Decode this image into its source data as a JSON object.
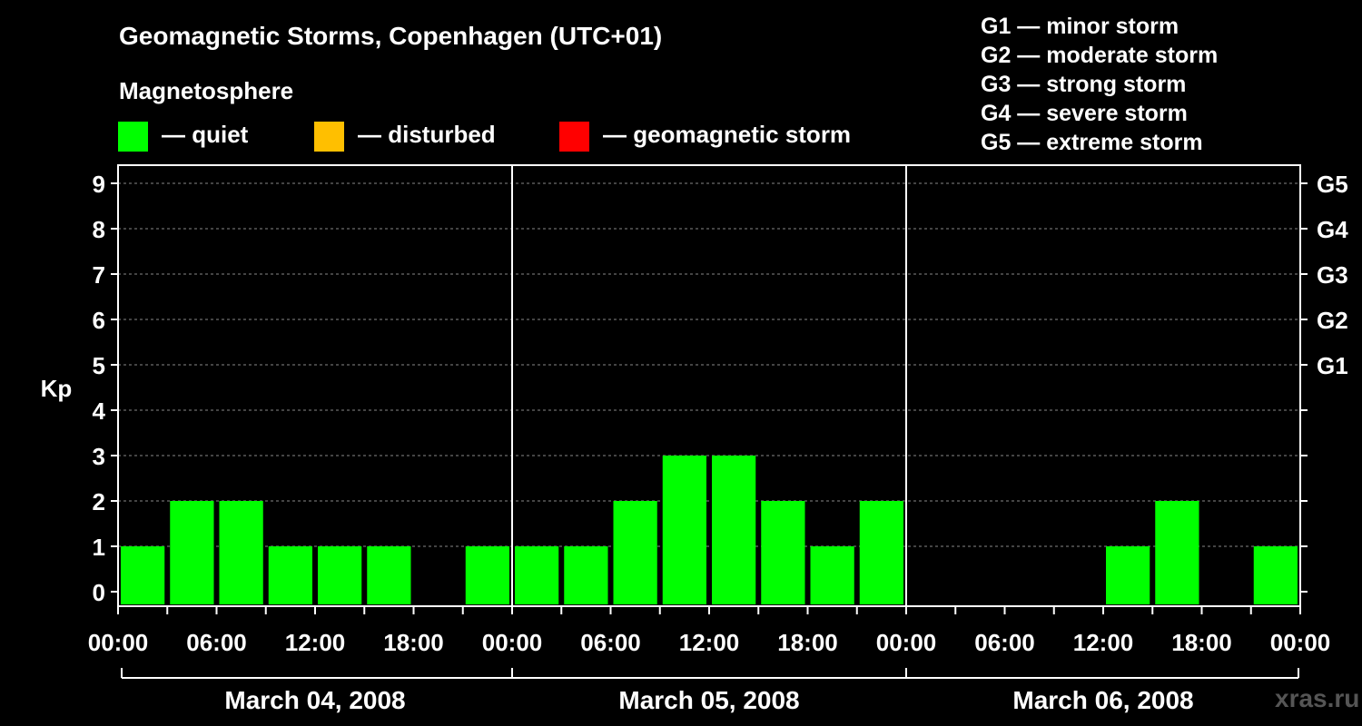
{
  "header": {
    "title": "Geomagnetic Storms, Copenhagen (UTC+01)",
    "magnetosphere": "Magnetosphere",
    "brand": "xras.ru"
  },
  "legend": [
    {
      "label": "— quiet",
      "color": "#00ff00"
    },
    {
      "label": "— disturbed",
      "color": "#ffbf00"
    },
    {
      "label": "— geomagnetic storm",
      "color": "#ff0000"
    }
  ],
  "storm_levels": [
    "G1 — minor storm",
    "G2 — moderate storm",
    "G3 — strong storm",
    "G4 — severe storm",
    "G5 — extreme storm"
  ],
  "chart_data": {
    "type": "bar",
    "ylabel": "Kp",
    "ylim": [
      0,
      9
    ],
    "y_ticks": [
      "0",
      "1",
      "2",
      "3",
      "4",
      "5",
      "6",
      "7",
      "8",
      "9"
    ],
    "right_axis": [
      {
        "kp": 5,
        "label": "G1"
      },
      {
        "kp": 6,
        "label": "G2"
      },
      {
        "kp": 7,
        "label": "G3"
      },
      {
        "kp": 8,
        "label": "G4"
      },
      {
        "kp": 9,
        "label": "G5"
      }
    ],
    "x_tick_labels": [
      "00:00",
      "06:00",
      "12:00",
      "18:00",
      "00:00",
      "06:00",
      "12:00",
      "18:00",
      "00:00",
      "06:00",
      "12:00",
      "18:00",
      "00:00"
    ],
    "days": [
      "March 04, 2008",
      "March 05, 2008",
      "March 06, 2008"
    ],
    "bar_color": "#00ff00",
    "bars": [
      {
        "day": "March 04, 2008",
        "kp": [
          1,
          2,
          2,
          1,
          1,
          1,
          0,
          1
        ]
      },
      {
        "day": "March 05, 2008",
        "kp": [
          1,
          1,
          2,
          3,
          3,
          2,
          1,
          2
        ]
      },
      {
        "day": "March 06, 2008",
        "kp": [
          0,
          0,
          0,
          0,
          1,
          2,
          0,
          1
        ]
      }
    ]
  }
}
